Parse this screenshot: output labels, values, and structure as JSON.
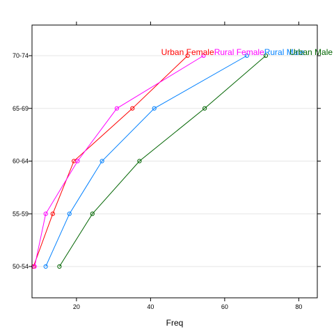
{
  "chart_data": {
    "type": "line",
    "title": "",
    "xlabel": "Freq",
    "ylabel": "",
    "xlim": [
      8,
      85
    ],
    "x_ticks": [
      20,
      40,
      60,
      80
    ],
    "categories": [
      "50-54",
      "55-59",
      "60-64",
      "65-69",
      "70-74"
    ],
    "grid": true,
    "legend": "direct labels at line ends",
    "series": [
      {
        "name": "Urban Female",
        "color": "#ff0000",
        "values": [
          8.4,
          13.6,
          19.3,
          35.1,
          50.0
        ]
      },
      {
        "name": "Rural Female",
        "color": "#ff00ff",
        "values": [
          8.7,
          11.7,
          20.3,
          30.9,
          54.3
        ]
      },
      {
        "name": "Rural Male",
        "color": "#0080ff",
        "values": [
          11.7,
          18.1,
          26.9,
          41.0,
          66.0
        ]
      },
      {
        "name": "Urban Male",
        "color": "#006400",
        "values": [
          15.4,
          24.3,
          37.0,
          54.6,
          71.1
        ]
      }
    ]
  }
}
